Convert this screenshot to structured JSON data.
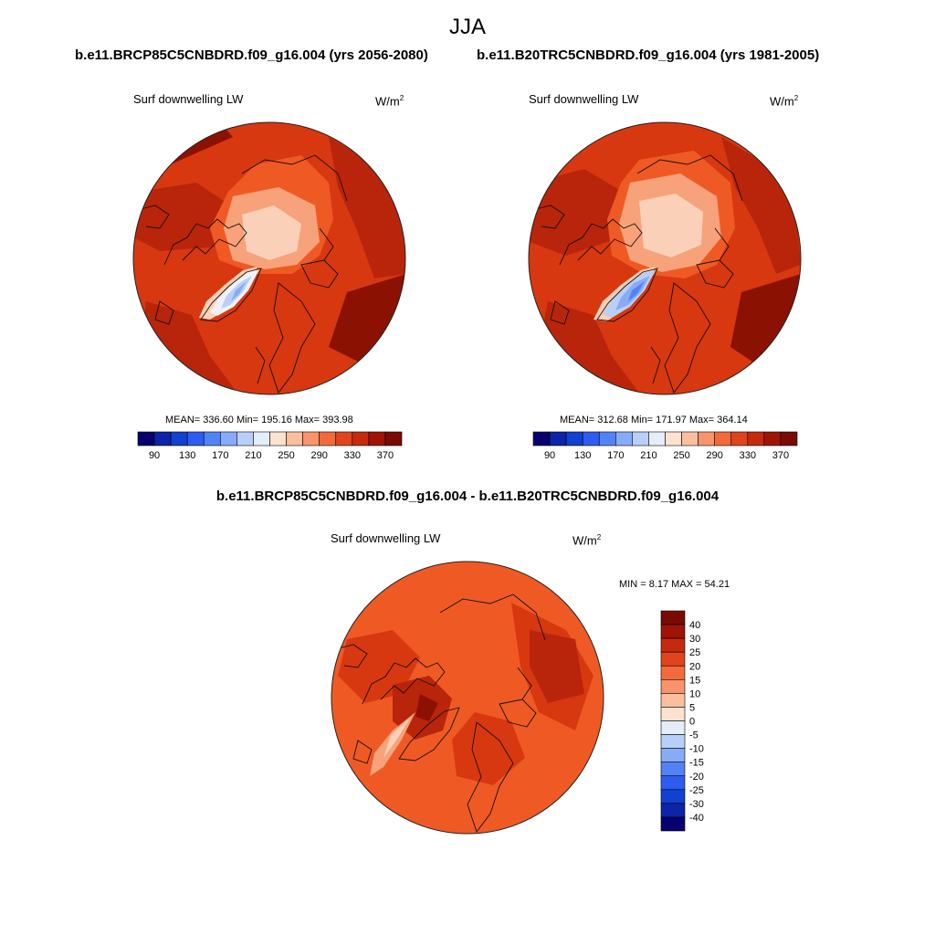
{
  "header": {
    "season": "JJA",
    "left_run": "b.e11.BRCP85C5CNBDRD.f09_g16.004 (yrs 2056-2080)",
    "right_run": "b.e11.B20TRC5CNBDRD.f09_g16.004 (yrs 1981-2005)",
    "diff_title": "b.e11.BRCP85C5CNBDRD.f09_g16.004 - b.e11.B20TRC5CNBDRD.f09_g16.004"
  },
  "panels": {
    "future": {
      "variable": "Surf downwelling LW",
      "units_base": "W/m",
      "units_exp": "2",
      "stats": "MEAN= 336.60  Min= 195.16  Max= 393.98"
    },
    "historical": {
      "variable": "Surf downwelling LW",
      "units_base": "W/m",
      "units_exp": "2",
      "stats": "MEAN= 312.68  Min= 171.97  Max= 364.14"
    },
    "difference": {
      "variable": "Surf downwelling LW",
      "units_base": "W/m",
      "units_exp": "2",
      "stats": "MIN =   8.17 MAX =  54.21"
    }
  },
  "colorbar_abs": {
    "colors": [
      "#08006e",
      "#0b24a8",
      "#1240d0",
      "#2e5cf0",
      "#5282f5",
      "#86acf7",
      "#b8d0f7",
      "#e4eef8",
      "#fde3cf",
      "#fbbf9d",
      "#f9936b",
      "#f26a3c",
      "#e0441d",
      "#c52a0e",
      "#a01405",
      "#7a0b02"
    ],
    "tick_labels": [
      "90",
      "130",
      "170",
      "210",
      "250",
      "290",
      "330",
      "370"
    ]
  },
  "colorbar_diff": {
    "colors": [
      "#08006e",
      "#0b24a8",
      "#1240d0",
      "#2e5cf0",
      "#5282f5",
      "#86acf7",
      "#b8d0f7",
      "#e4eef8",
      "#fde3cf",
      "#fbbf9d",
      "#f9936b",
      "#f26a3c",
      "#e0441d",
      "#c52a0e",
      "#a01405",
      "#7a0b02"
    ],
    "tick_labels": [
      "40",
      "30",
      "25",
      "20",
      "15",
      "10",
      "5",
      "0",
      "-5",
      "-10",
      "-15",
      "-20",
      "-25",
      "-30",
      "-40"
    ]
  },
  "map_colors": {
    "deep": "#8b1203",
    "dark": "#b8250b",
    "mid": "#d8380f",
    "light": "#ef5a24",
    "pale": "#f7a27a",
    "paler": "#fbd0b8",
    "ice_white": "#eef2f8",
    "ice_light": "#b8d0f7",
    "ice_mid": "#86acf7",
    "ice_blue": "#5282f5"
  }
}
